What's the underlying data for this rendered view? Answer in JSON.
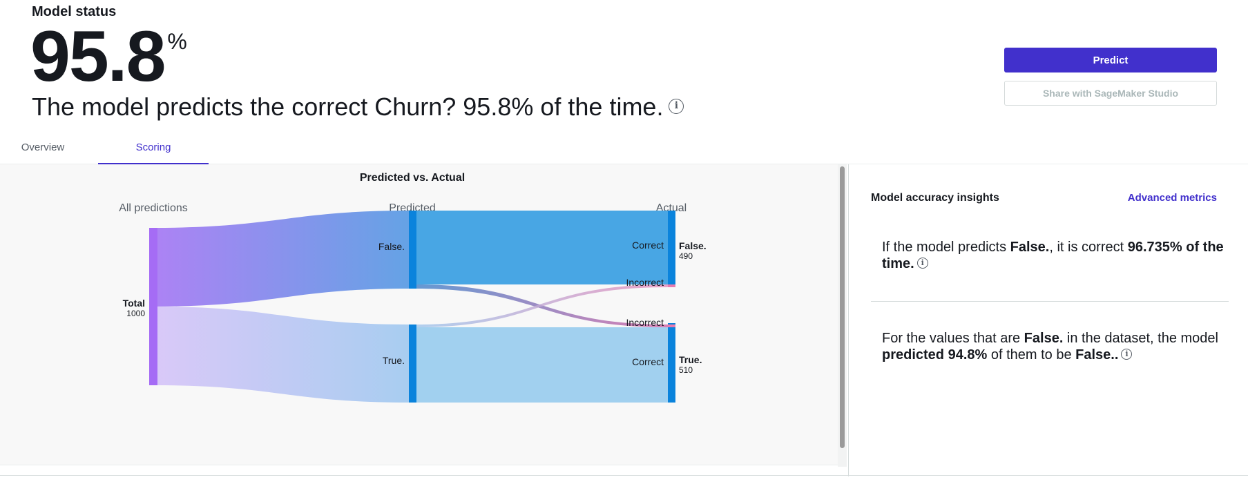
{
  "header": {
    "status_label": "Model status",
    "metric_value": "95.8",
    "metric_unit": "%",
    "summary": "The model predicts the correct Churn? 95.8% of the time."
  },
  "actions": {
    "predict_label": "Predict",
    "share_label": "Share with SageMaker Studio"
  },
  "tabs": [
    {
      "label": "Overview",
      "active": false
    },
    {
      "label": "Scoring",
      "active": true
    }
  ],
  "chart_data": {
    "type": "sankey",
    "title": "Predicted vs. Actual",
    "columns": [
      "All predictions",
      "Predicted",
      "Actual"
    ],
    "total": {
      "label": "Total",
      "value": 1000
    },
    "predicted_nodes": [
      {
        "label": "False."
      },
      {
        "label": "True."
      }
    ],
    "actual_nodes": [
      {
        "label": "False.",
        "value": 490
      },
      {
        "label": "True.",
        "value": 510
      }
    ],
    "flow_labels": {
      "correct": "Correct",
      "incorrect": "Incorrect"
    },
    "colors": {
      "total_node": "#a56cf5",
      "false_flow": "#3ea1e3",
      "true_flow": "#9ccdee",
      "node_bar": "#0a83dc",
      "incorrect_flow": "#e87bb0"
    }
  },
  "insights": {
    "title": "Model accuracy insights",
    "advanced_link": "Advanced metrics",
    "insight1": {
      "pre": "If the model predicts ",
      "value": "False.",
      "mid": ", it is correct ",
      "pct": "96.735% of the time."
    },
    "insight2": {
      "pre": "For the values that are ",
      "value": "False.",
      "mid": " in the dataset, the model ",
      "bold": "predicted 94.8%",
      "post": " of them to be ",
      "value2": "False.."
    }
  }
}
